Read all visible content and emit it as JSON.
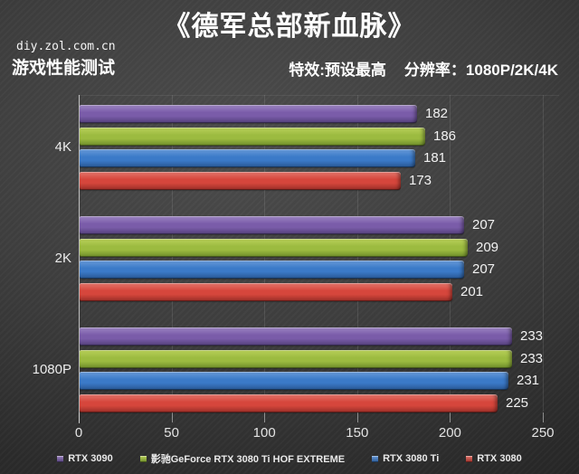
{
  "header": {
    "title": "《德军总部新血脉》",
    "site": "diy.zol.com.cn",
    "subtitle_left": "游戏性能测试",
    "settings": "特效:预设最高",
    "resolution": "分辨率：1080P/2K/4K"
  },
  "chart_data": {
    "type": "bar",
    "orientation": "horizontal",
    "title": "《德军总部新血脉》",
    "categories": [
      "4K",
      "2K",
      "1080P"
    ],
    "series": [
      {
        "name": "RTX 3090",
        "color": "#7a5ca9",
        "color_light": "#9d85c2",
        "color_dark": "#53407a",
        "values": [
          182,
          207,
          233
        ]
      },
      {
        "name": "影驰GeForce RTX 3080 Ti HOF EXTREME",
        "color": "#9cbb40",
        "color_light": "#b9d059",
        "color_dark": "#6d8c2a",
        "values": [
          186,
          209,
          233
        ]
      },
      {
        "name": "RTX 3080 Ti",
        "color": "#3b7ac8",
        "color_light": "#699bd9",
        "color_dark": "#285793",
        "values": [
          181,
          207,
          231
        ]
      },
      {
        "name": "RTX 3080",
        "color": "#d6463c",
        "color_light": "#e4766c",
        "color_dark": "#99it2e27",
        "values": [
          173,
          201,
          225
        ]
      }
    ],
    "x_ticks": [
      0,
      50,
      100,
      150,
      200,
      250
    ],
    "xlim": [
      0,
      258
    ],
    "ylabel": "",
    "xlabel": "",
    "grid": "vertical",
    "legend_position": "bottom"
  }
}
